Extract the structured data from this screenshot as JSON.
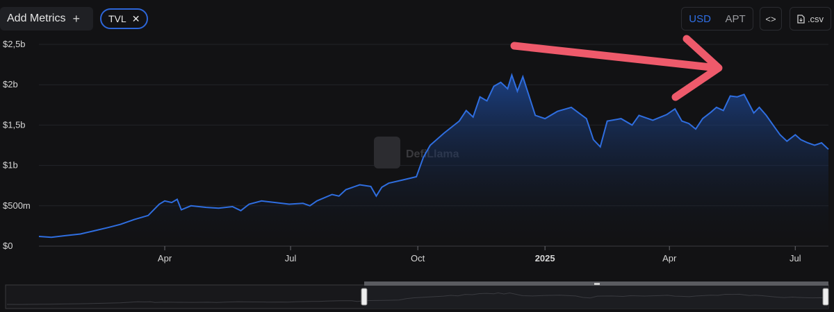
{
  "toolbar": {
    "add_metrics_label": "Add Metrics",
    "add_metrics_icon": "plus-icon",
    "metric_chip_label": "TVL",
    "currency_options": [
      "USD",
      "APT"
    ],
    "currency_selected": "USD",
    "embed_icon": "code-icon",
    "csv_label": ".csv",
    "csv_icon": "file-icon"
  },
  "watermark": "DefiLlama",
  "colors": {
    "line": "#2f6ee0",
    "arrow": "#ee5a6b",
    "accent": "#2f6fe6"
  },
  "chart_data": {
    "type": "area",
    "y_tick_labels": [
      "$0",
      "$500m",
      "$1b",
      "$1,5b",
      "$2b",
      "$2,5b"
    ],
    "y_ticks": [
      0,
      0.5,
      1,
      1.5,
      2,
      2.5
    ],
    "ylim": [
      0,
      2.5
    ],
    "x_tick_labels": [
      "Apr",
      "Jul",
      "Oct",
      "2025",
      "Apr",
      "Jul"
    ],
    "x_ticks": [
      "2024-04-01",
      "2024-07-01",
      "2024-10-01",
      "2025-01-01",
      "2025-04-01",
      "2025-07-01"
    ],
    "xlim": [
      "2024-01-01",
      "2025-07-25"
    ],
    "series": [
      {
        "values_unit": "billion USD",
        "points": [
          [
            "2024-01-01",
            0.12
          ],
          [
            "2024-01-10",
            0.11
          ],
          [
            "2024-01-20",
            0.13
          ],
          [
            "2024-01-31",
            0.15
          ],
          [
            "2024-02-10",
            0.19
          ],
          [
            "2024-02-20",
            0.23
          ],
          [
            "2024-02-29",
            0.27
          ],
          [
            "2024-03-10",
            0.33
          ],
          [
            "2024-03-20",
            0.38
          ],
          [
            "2024-03-28",
            0.52
          ],
          [
            "2024-04-01",
            0.56
          ],
          [
            "2024-04-06",
            0.54
          ],
          [
            "2024-04-10",
            0.58
          ],
          [
            "2024-04-13",
            0.45
          ],
          [
            "2024-04-20",
            0.5
          ],
          [
            "2024-05-01",
            0.48
          ],
          [
            "2024-05-10",
            0.47
          ],
          [
            "2024-05-20",
            0.49
          ],
          [
            "2024-05-26",
            0.44
          ],
          [
            "2024-06-01",
            0.52
          ],
          [
            "2024-06-10",
            0.56
          ],
          [
            "2024-06-20",
            0.54
          ],
          [
            "2024-06-30",
            0.52
          ],
          [
            "2024-07-10",
            0.53
          ],
          [
            "2024-07-15",
            0.5
          ],
          [
            "2024-07-20",
            0.56
          ],
          [
            "2024-07-31",
            0.64
          ],
          [
            "2024-08-05",
            0.62
          ],
          [
            "2024-08-10",
            0.7
          ],
          [
            "2024-08-20",
            0.76
          ],
          [
            "2024-08-28",
            0.74
          ],
          [
            "2024-09-01",
            0.62
          ],
          [
            "2024-09-05",
            0.73
          ],
          [
            "2024-09-10",
            0.78
          ],
          [
            "2024-09-20",
            0.82
          ],
          [
            "2024-09-30",
            0.86
          ],
          [
            "2024-10-05",
            1.1
          ],
          [
            "2024-10-10",
            1.25
          ],
          [
            "2024-10-20",
            1.4
          ],
          [
            "2024-10-31",
            1.55
          ],
          [
            "2024-11-05",
            1.68
          ],
          [
            "2024-11-10",
            1.6
          ],
          [
            "2024-11-15",
            1.85
          ],
          [
            "2024-11-20",
            1.8
          ],
          [
            "2024-11-25",
            1.98
          ],
          [
            "2024-11-30",
            2.03
          ],
          [
            "2024-12-05",
            1.95
          ],
          [
            "2024-12-08",
            2.12
          ],
          [
            "2024-12-12",
            1.92
          ],
          [
            "2024-12-16",
            2.1
          ],
          [
            "2024-12-25",
            1.62
          ],
          [
            "2025-01-01",
            1.58
          ],
          [
            "2025-01-10",
            1.67
          ],
          [
            "2025-01-20",
            1.72
          ],
          [
            "2025-01-31",
            1.58
          ],
          [
            "2025-02-05",
            1.32
          ],
          [
            "2025-02-10",
            1.23
          ],
          [
            "2025-02-15",
            1.55
          ],
          [
            "2025-02-25",
            1.58
          ],
          [
            "2025-03-05",
            1.5
          ],
          [
            "2025-03-10",
            1.62
          ],
          [
            "2025-03-20",
            1.56
          ],
          [
            "2025-03-30",
            1.63
          ],
          [
            "2025-04-05",
            1.7
          ],
          [
            "2025-04-10",
            1.55
          ],
          [
            "2025-04-15",
            1.52
          ],
          [
            "2025-04-20",
            1.45
          ],
          [
            "2025-04-25",
            1.58
          ],
          [
            "2025-05-01",
            1.66
          ],
          [
            "2025-05-05",
            1.72
          ],
          [
            "2025-05-10",
            1.68
          ],
          [
            "2025-05-15",
            1.86
          ],
          [
            "2025-05-20",
            1.85
          ],
          [
            "2025-05-25",
            1.88
          ],
          [
            "2025-06-01",
            1.65
          ],
          [
            "2025-06-05",
            1.72
          ],
          [
            "2025-06-10",
            1.62
          ],
          [
            "2025-06-15",
            1.5
          ],
          [
            "2025-06-20",
            1.38
          ],
          [
            "2025-06-25",
            1.3
          ],
          [
            "2025-07-01",
            1.38
          ],
          [
            "2025-07-05",
            1.32
          ],
          [
            "2025-07-10",
            1.28
          ],
          [
            "2025-07-15",
            1.25
          ],
          [
            "2025-07-20",
            1.28
          ],
          [
            "2025-07-25",
            1.2
          ]
        ]
      }
    ]
  }
}
